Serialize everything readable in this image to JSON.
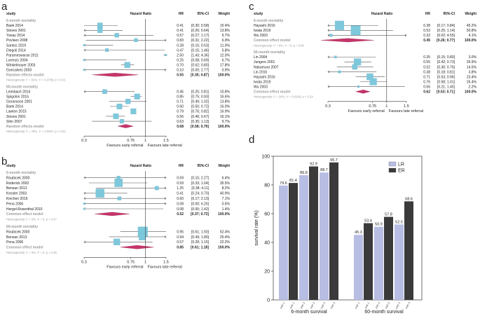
{
  "chart_data": [
    {
      "type": "forest",
      "panel": "a",
      "headers": {
        "study": "study",
        "hazard_ratio": "Hazard Ratio",
        "hr": "HR",
        "ci": "95%-CI",
        "weight": "Weight"
      },
      "axis": {
        "ticks": [
          "0.3",
          "0.75",
          "1",
          "1.5"
        ],
        "tick_values": [
          0.3,
          0.75,
          1,
          1.5
        ],
        "range": [
          0.3,
          1.5
        ],
        "scale": "log",
        "left_label": "Favours early referral",
        "right_label": "Favours late referral"
      },
      "groups": [
        {
          "title": "6-month mortality",
          "studies": [
            {
              "name": "Baek 2014",
              "hr": 0.41,
              "ci_text": "[0.30; 0.58]",
              "lo": 0.3,
              "hi": 0.58,
              "weight": "15.4%"
            },
            {
              "name": "Stoves 2001",
              "hr": 0.41,
              "ci_text": "[0.26; 0.64]",
              "lo": 0.26,
              "hi": 0.64,
              "weight": "13.8%"
            },
            {
              "name": "Yanay 2014",
              "hr": 0.57,
              "ci_text": "[0.27; 1.17]",
              "lo": 0.27,
              "hi": 1.17,
              "weight": "9.7%"
            },
            {
              "name": "Povlsen 2008",
              "hr": 0.83,
              "ci_text": "[0.31; 2.22]",
              "lo": 0.31,
              "hi": 2.22,
              "weight": "6.9%"
            },
            {
              "name": "Santos 2019",
              "hr": 0.28,
              "ci_text": "[0.15; 0.53]",
              "lo": 0.15,
              "hi": 0.53,
              "weight": "11.0%"
            },
            {
              "name": "Diegoli 2014",
              "hr": 0.47,
              "ci_text": "[0.15; 1.46]",
              "lo": 0.15,
              "hi": 1.46,
              "weight": "5.8%"
            },
            {
              "name": "Parameswaran 2011",
              "hr": 2.5,
              "ci_text": "[1.43; 4.36]",
              "lo": 1.43,
              "hi": 4.36,
              "weight": "12.0%"
            },
            {
              "name": "Lorenzo 2004",
              "hr": 0.25,
              "ci_text": "[0.08; 0.69]",
              "lo": 0.08,
              "hi": 0.69,
              "weight": "6.7%"
            },
            {
              "name": "Winkelmayer 2003",
              "hr": 0.7,
              "ci_text": "[0.62; 0.80]",
              "lo": 0.62,
              "hi": 0.8,
              "weight": "17.8%"
            },
            {
              "name": "Goncalves 2003",
              "hr": 0.1,
              "ci_text": "[0.00; 2.77]",
              "lo": 0.005,
              "hi": 2.77,
              "weight": "0.9%"
            }
          ],
          "summary": {
            "label": "Random effects model",
            "hr": "0.55",
            "ci_text": "[0.35; 0.87]",
            "weight": "100.0%",
            "est": 0.55,
            "lo": 0.35,
            "hi": 0.87
          },
          "heterogeneity": "Heterogeneity: I² = 81%, τ² = 0.3788, p < 0.01"
        },
        {
          "title": "60-month mortality",
          "studies": [
            {
              "name": "Leimbach 2014",
              "hr": 0.45,
              "ci_text": "[0.25; 0.81]",
              "lo": 0.25,
              "hi": 0.81,
              "weight": "10.8%"
            },
            {
              "name": "Spigolon 2016",
              "hr": 0.85,
              "ci_text": "[0.75; 0.93]",
              "lo": 0.75,
              "hi": 0.93,
              "weight": "16.6%"
            },
            {
              "name": "Goransson 2001",
              "hr": 0.71,
              "ci_text": "[0.49; 1.02]",
              "lo": 0.49,
              "hi": 1.02,
              "weight": "13.8%"
            },
            {
              "name": "Baek 2014",
              "hr": 0.6,
              "ci_text": "[0.50; 0.72]",
              "lo": 0.5,
              "hi": 0.72,
              "weight": "16.0%"
            },
            {
              "name": "Lawton 2015",
              "hr": 0.79,
              "ci_text": "[0.76; 0.82]",
              "lo": 0.76,
              "hi": 0.82,
              "weight": "16.9%"
            },
            {
              "name": "Stoves 2001",
              "hr": 0.56,
              "ci_text": "[0.46; 0.67]",
              "lo": 0.46,
              "hi": 0.67,
              "weight": "16.1%"
            },
            {
              "name": "Shin 2007",
              "hr": 0.63,
              "ci_text": "[0.35; 1.13]",
              "lo": 0.35,
              "hi": 1.13,
              "weight": "9.7%"
            }
          ],
          "summary": {
            "label": "Random effects model",
            "hr": "0.68",
            "ci_text": "[0.58; 0.79]",
            "weight": "100.0%",
            "est": 0.68,
            "lo": 0.58,
            "hi": 0.79
          },
          "heterogeneity": "Heterogeneity: I² = 78%, τ² = 0.0267, p < 0.01"
        }
      ]
    },
    {
      "type": "forest",
      "panel": "b",
      "headers": {
        "study": "study",
        "hazard_ratio": "Hazard Ratio",
        "hr": "HR",
        "ci": "95%-CI",
        "weight": "Weight"
      },
      "axis": {
        "ticks": [
          "0.3",
          "0.75",
          "1",
          "1.5"
        ],
        "tick_values": [
          0.3,
          0.75,
          1,
          1.5
        ],
        "range": [
          0.3,
          1.5
        ],
        "scale": "log",
        "left_label": "Favours early referral",
        "right_label": "Favours late referral"
      },
      "groups": [
        {
          "title": "6-month mortality",
          "studies": [
            {
              "name": "Roubicek 2000",
              "hr": 0.59,
              "ci_text": "[0.15; 2.27]",
              "lo": 0.15,
              "hi": 2.27,
              "weight": "6.4%"
            },
            {
              "name": "Roderick 2002",
              "hr": 0.59,
              "ci_text": "[0.33; 1.04]",
              "lo": 0.33,
              "hi": 1.04,
              "weight": "35.5%"
            },
            {
              "name": "Bensan 2013",
              "hr": 1.25,
              "ci_text": "[0.38; 4.11]",
              "lo": 0.38,
              "hi": 4.11,
              "weight": "8.2%"
            },
            {
              "name": "Kessler 2003",
              "hr": 0.41,
              "ci_text": "[0.24; 0.70]",
              "lo": 0.24,
              "hi": 0.7,
              "weight": "40.9%"
            },
            {
              "name": "Kinchen 2016",
              "hr": 0.6,
              "ci_text": "[0.17; 2.13]",
              "lo": 0.17,
              "hi": 2.13,
              "weight": "7.1%"
            },
            {
              "name": "Pena 2006",
              "hr": 0.08,
              "ci_text": "[0.00; 6.25]",
              "lo": 0.005,
              "hi": 6.25,
              "weight": "0.5%"
            },
            {
              "name": "Hergel-Rosenthal 2010",
              "hr": 0.08,
              "ci_text": "[0.00; 1.42]",
              "lo": 0.005,
              "hi": 1.42,
              "weight": "1.4%"
            }
          ],
          "summary": {
            "label": "Common effect model",
            "hr": "0.52",
            "ci_text": "[0.37; 0.73]",
            "weight": "100.0%",
            "est": 0.52,
            "lo": 0.37,
            "hi": 0.73
          },
          "heterogeneity": "Heterogeneity: I² = 0%, τ² = 0, p = 0.47"
        },
        {
          "title": "60-month mortality",
          "studies": [
            {
              "name": "Roubicek 2000",
              "hr": 0.95,
              "ci_text": "[0.61; 1.50]",
              "lo": 0.61,
              "hi": 1.5,
              "weight": "52.4%"
            },
            {
              "name": "Bensan 2013",
              "hr": 0.94,
              "ci_text": "[0.49; 1.80]",
              "lo": 0.49,
              "hi": 1.8,
              "weight": "25.4%"
            },
            {
              "name": "Pena 2006",
              "hr": 0.57,
              "ci_text": "[0.28; 1.15]",
              "lo": 0.28,
              "hi": 1.15,
              "weight": "22.2%"
            }
          ],
          "summary": {
            "label": "Common effect model",
            "hr": "0.85",
            "ci_text": "[0.61; 1.18]",
            "weight": "100.0%",
            "est": 0.85,
            "lo": 0.61,
            "hi": 1.18
          },
          "heterogeneity": "Heterogeneity: I² = 0%, τ² = 0, p = 0.45"
        }
      ]
    },
    {
      "type": "forest",
      "panel": "c",
      "headers": {
        "study": "study",
        "hazard_ratio": "Hazard Ratio",
        "hr": "HR",
        "ci": "95%-CI",
        "weight": "Weight"
      },
      "axis": {
        "ticks": [
          "0.3",
          "0.75",
          "1",
          "1.5"
        ],
        "tick_values": [
          0.3,
          0.75,
          1,
          1.5
        ],
        "range": [
          0.3,
          1.5
        ],
        "scale": "log",
        "left_label": "Favours early referral",
        "right_label": "Favours late referral"
      },
      "groups": [
        {
          "title": "6-month mortality",
          "studies": [
            {
              "name": "Hayashi 2016",
              "hr": 0.38,
              "ci_text": "[0.17; 0.84]",
              "lo": 0.17,
              "hi": 0.84,
              "weight": "45.2%"
            },
            {
              "name": "Iwata 2019",
              "hr": 0.53,
              "ci_text": "[0.25; 1.14]",
              "lo": 0.25,
              "hi": 1.14,
              "weight": "50.8%"
            },
            {
              "name": "Wu 2003",
              "hr": 0.32,
              "ci_text": "[0.02; 4.55]",
              "lo": 0.02,
              "hi": 4.55,
              "weight": "4.1%"
            }
          ],
          "summary": {
            "label": "Common effect model",
            "hr": "0.45",
            "ci_text": "[0.26; 0.77]",
            "weight": "100.0%",
            "est": 0.45,
            "lo": 0.26,
            "hi": 0.77
          },
          "heterogeneity": "Heterogeneity: I² = 0%, τ² = 0, p = 0.80"
        },
        {
          "title": "60-month mortality",
          "studies": [
            {
              "name": "Lin 2004",
              "hr": 0.35,
              "ci_text": "[0.15; 0.80]",
              "lo": 0.15,
              "hi": 0.8,
              "weight": "3.0%"
            },
            {
              "name": "Jungers 2001",
              "hr": 0.55,
              "ci_text": "[0.42; 0.73]",
              "lo": 0.42,
              "hi": 0.73,
              "weight": "26.9%"
            },
            {
              "name": "Nakamura 2007",
              "hr": 0.52,
              "ci_text": "[0.36; 0.76]",
              "lo": 0.36,
              "hi": 0.76,
              "weight": "14.5%"
            },
            {
              "name": "Lin 2016",
              "hr": 0.38,
              "ci_text": "[0.18; 0.81]",
              "lo": 0.18,
              "hi": 0.81,
              "weight": "3.8%"
            },
            {
              "name": "Hayashi 2016",
              "hr": 0.71,
              "ci_text": "[0.53; 0.96]",
              "lo": 0.53,
              "hi": 0.96,
              "weight": "23.4%"
            },
            {
              "name": "Iwata 2019",
              "hr": 0.76,
              "ci_text": "[0.58; 1.01]",
              "lo": 0.58,
              "hi": 1.01,
              "weight": "26.4%"
            },
            {
              "name": "Wu 2003",
              "hr": 0.56,
              "ci_text": "[0.21; 1.45]",
              "lo": 0.21,
              "hi": 1.45,
              "weight": "2.2%"
            }
          ],
          "summary": {
            "label": "Common effect model",
            "hr": "0.62",
            "ci_text": "[0.53; 0.71]",
            "weight": "100.0%",
            "est": 0.62,
            "lo": 0.53,
            "hi": 0.71
          },
          "heterogeneity": "Heterogeneity: I² = 24%, τ² = 0.0149, p = 0.24"
        }
      ]
    },
    {
      "type": "bar",
      "panel": "d",
      "ylabel": "survival rate (%)",
      "ylim": [
        0,
        100
      ],
      "yticks": [
        0,
        20,
        40,
        60,
        80,
        100
      ],
      "legend": [
        "LR",
        "ER"
      ],
      "colors": {
        "LR": "#b8bde3",
        "ER": "#3a3a3a"
      },
      "groups": [
        {
          "label": "6-month survival",
          "pairs": [
            {
              "tick": "pair-1",
              "lr": 79.6,
              "er": 81.4
            },
            {
              "tick": "pair-2",
              "lr": 86.8,
              "er": 92.9
            },
            {
              "tick": "pair-3",
              "lr": 88.7,
              "er": 95.7
            }
          ]
        },
        {
          "label": "60-month survival",
          "pairs": [
            {
              "tick": "pair-1",
              "lr": 45.3,
              "er": 53.4
            },
            {
              "tick": "pair-2",
              "lr": 50.9,
              "er": 57.8
            },
            {
              "tick": "pair-3",
              "lr": 52.5,
              "er": 68.6
            }
          ]
        }
      ]
    }
  ],
  "panels": {
    "a": {
      "letter": "a"
    },
    "b": {
      "letter": "b"
    },
    "c": {
      "letter": "c"
    },
    "d": {
      "letter": "d"
    }
  }
}
